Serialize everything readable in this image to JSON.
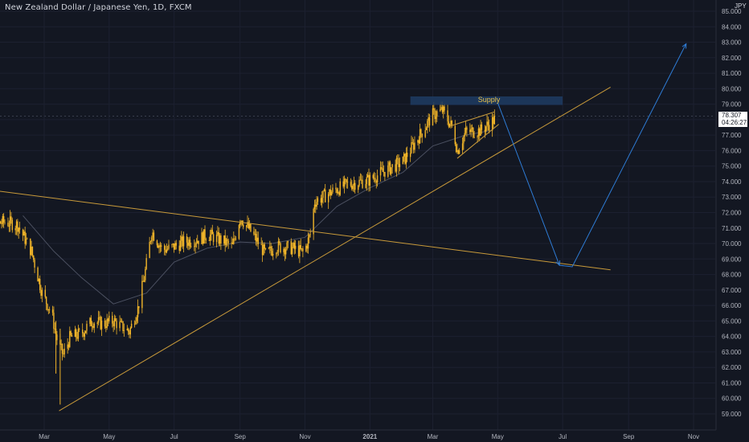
{
  "header": {
    "symbol_title": "New Zealand Dollar / Japanese Yen, 1D, FXCM",
    "currency": "JPY"
  },
  "price_label": {
    "price": "78.307",
    "countdown": "04:26:27"
  },
  "annotations": {
    "supply_label": "Supply"
  },
  "colors": {
    "background": "#131722",
    "candles": "#f0b429",
    "trendline": "#c89a3a",
    "projection": "#2e7cd6",
    "supply_box": "#1e3a5f",
    "moving_average": "#4b5060"
  },
  "chart_data": {
    "type": "candlestick",
    "title": "New Zealand Dollar / Japanese Yen, 1D, FXCM",
    "ylim": [
      58.5,
      85.2
    ],
    "yticks": [
      "59.000",
      "60.000",
      "61.000",
      "62.000",
      "63.000",
      "64.000",
      "65.000",
      "66.000",
      "67.000",
      "68.000",
      "69.000",
      "70.000",
      "71.000",
      "72.000",
      "73.000",
      "74.000",
      "75.000",
      "76.000",
      "77.000",
      "78.000",
      "79.000",
      "80.000",
      "81.000",
      "82.000",
      "83.000",
      "84.000",
      "85.000"
    ],
    "xticks": [
      {
        "label": "Mar",
        "date": "2020-03-01",
        "bold": false
      },
      {
        "label": "May",
        "date": "2020-05-01",
        "bold": false
      },
      {
        "label": "Jul",
        "date": "2020-07-01",
        "bold": false
      },
      {
        "label": "Sep",
        "date": "2020-09-01",
        "bold": false
      },
      {
        "label": "Nov",
        "date": "2020-11-01",
        "bold": false
      },
      {
        "label": "2021",
        "date": "2021-01-01",
        "bold": true
      },
      {
        "label": "Mar",
        "date": "2021-03-01",
        "bold": false
      },
      {
        "label": "May",
        "date": "2021-05-01",
        "bold": false
      },
      {
        "label": "Jul",
        "date": "2021-07-01",
        "bold": false
      },
      {
        "label": "Sep",
        "date": "2021-09-01",
        "bold": false
      },
      {
        "label": "Nov",
        "date": "2021-11-01",
        "bold": false
      }
    ],
    "price_path": [
      [
        "2019-12-25",
        72.5
      ],
      [
        "2020-01-10",
        71.2
      ],
      [
        "2020-01-25",
        71.4
      ],
      [
        "2020-02-05",
        71.2
      ],
      [
        "2020-02-18",
        69.5
      ],
      [
        "2020-02-28",
        66.8
      ],
      [
        "2020-03-08",
        65.5
      ],
      [
        "2020-03-14",
        63.5
      ],
      [
        "2020-03-19",
        62.8
      ],
      [
        "2020-03-25",
        63.9
      ],
      [
        "2020-04-05",
        64.2
      ],
      [
        "2020-04-15",
        65.0
      ],
      [
        "2020-04-25",
        64.8
      ],
      [
        "2020-05-05",
        65.0
      ],
      [
        "2020-05-20",
        64.3
      ],
      [
        "2020-05-28",
        65.8
      ],
      [
        "2020-06-03",
        67.8
      ],
      [
        "2020-06-10",
        70.8
      ],
      [
        "2020-06-20",
        69.6
      ],
      [
        "2020-06-28",
        69.7
      ],
      [
        "2020-07-10",
        70.1
      ],
      [
        "2020-07-25",
        70.3
      ],
      [
        "2020-08-01",
        70.6
      ],
      [
        "2020-08-15",
        70.2
      ],
      [
        "2020-08-25",
        69.8
      ],
      [
        "2020-09-01",
        71.7
      ],
      [
        "2020-09-10",
        70.9
      ],
      [
        "2020-09-25",
        69.3
      ],
      [
        "2020-10-05",
        69.8
      ],
      [
        "2020-10-20",
        69.7
      ],
      [
        "2020-10-31",
        69.4
      ],
      [
        "2020-11-06",
        70.6
      ],
      [
        "2020-11-10",
        72.7
      ],
      [
        "2020-11-25",
        73.3
      ],
      [
        "2020-12-10",
        73.8
      ],
      [
        "2020-12-31",
        74.1
      ],
      [
        "2021-01-15",
        74.7
      ],
      [
        "2021-02-01",
        75.3
      ],
      [
        "2021-02-15",
        76.8
      ],
      [
        "2021-03-01",
        78.3
      ],
      [
        "2021-03-10",
        78.6
      ],
      [
        "2021-03-20",
        77.4
      ],
      [
        "2021-03-24",
        76.0
      ],
      [
        "2021-04-01",
        77.2
      ],
      [
        "2021-04-15",
        77.3
      ],
      [
        "2021-04-28",
        78.0
      ]
    ],
    "moving_average": [
      [
        "2020-02-10",
        71.8
      ],
      [
        "2020-03-10",
        69.5
      ],
      [
        "2020-04-05",
        67.8
      ],
      [
        "2020-05-05",
        66.1
      ],
      [
        "2020-06-05",
        66.8
      ],
      [
        "2020-07-01",
        68.8
      ],
      [
        "2020-08-01",
        69.7
      ],
      [
        "2020-09-01",
        70.1
      ],
      [
        "2020-10-01",
        70.0
      ],
      [
        "2020-11-01",
        70.4
      ],
      [
        "2020-12-01",
        72.4
      ],
      [
        "2021-01-01",
        73.6
      ],
      [
        "2021-02-01",
        74.6
      ],
      [
        "2021-03-01",
        76.3
      ],
      [
        "2021-04-01",
        77.0
      ],
      [
        "2021-04-25",
        77.3
      ]
    ],
    "drawings": {
      "ascending_trendline": [
        [
          "2020-03-15",
          59.2
        ],
        [
          "2021-08-15",
          80.1
        ]
      ],
      "descending_trendline": [
        [
          "2019-12-25",
          73.6
        ],
        [
          "2021-08-15",
          68.3
        ]
      ],
      "wedge_upper": [
        [
          "2021-03-18",
          77.6
        ],
        [
          "2021-04-28",
          78.5
        ]
      ],
      "wedge_lower": [
        [
          "2021-03-24",
          75.5
        ],
        [
          "2021-05-02",
          77.7
        ]
      ],
      "supply_zone": {
        "from": "2021-02-08",
        "to": "2021-07-01",
        "low": 78.95,
        "high": 79.5
      },
      "projection": [
        [
          "2021-05-01",
          79.1
        ],
        [
          "2021-06-28",
          68.6
        ],
        [
          "2021-07-10",
          68.5
        ],
        [
          "2021-10-25",
          82.9
        ]
      ]
    }
  }
}
